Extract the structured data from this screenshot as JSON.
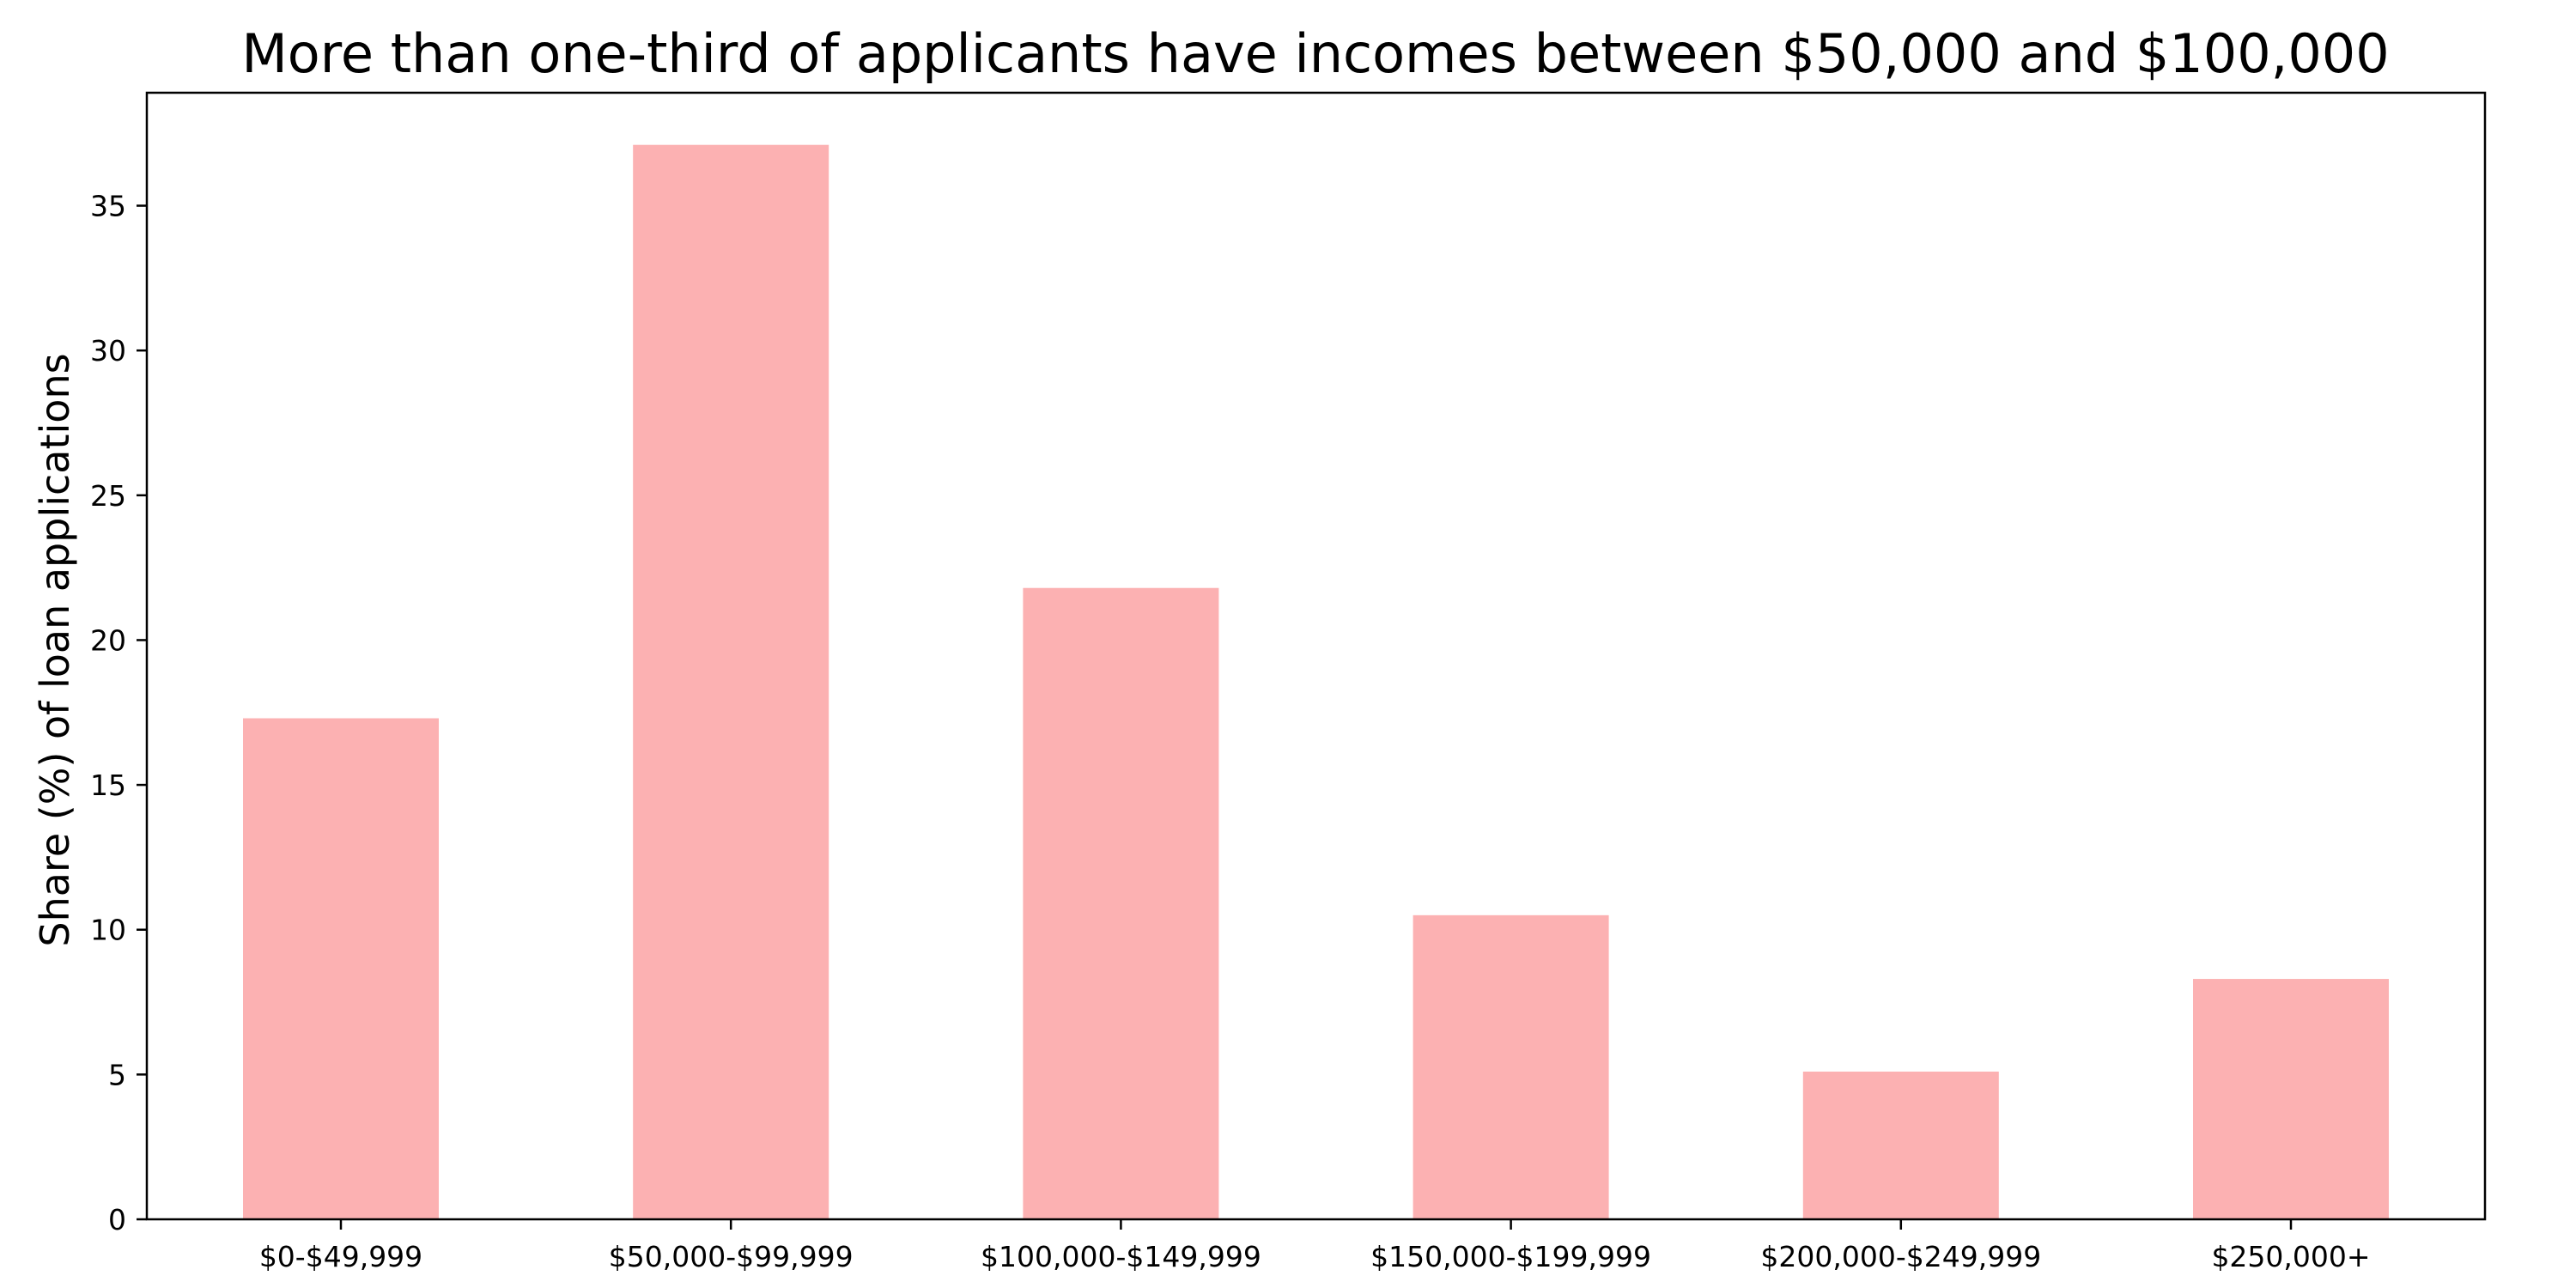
{
  "chart_data": {
    "type": "bar",
    "title": "More than one-third of applicants have incomes between $50,000 and $100,000",
    "xlabel": "",
    "ylabel": "Share (%) of loan applications",
    "categories": [
      "$0-$49,999",
      "$50,000-$99,999",
      "$100,000-$149,999",
      "$150,000-$199,999",
      "$200,000-$249,999",
      "$250,000+"
    ],
    "values": [
      17.3,
      37.1,
      21.8,
      10.5,
      5.1,
      8.3
    ],
    "ylim": [
      0,
      38.9
    ],
    "yticks": [
      0,
      5,
      10,
      15,
      20,
      25,
      30,
      35
    ],
    "grid": false,
    "legend": "none",
    "bar_color": "#fcb1b2"
  }
}
